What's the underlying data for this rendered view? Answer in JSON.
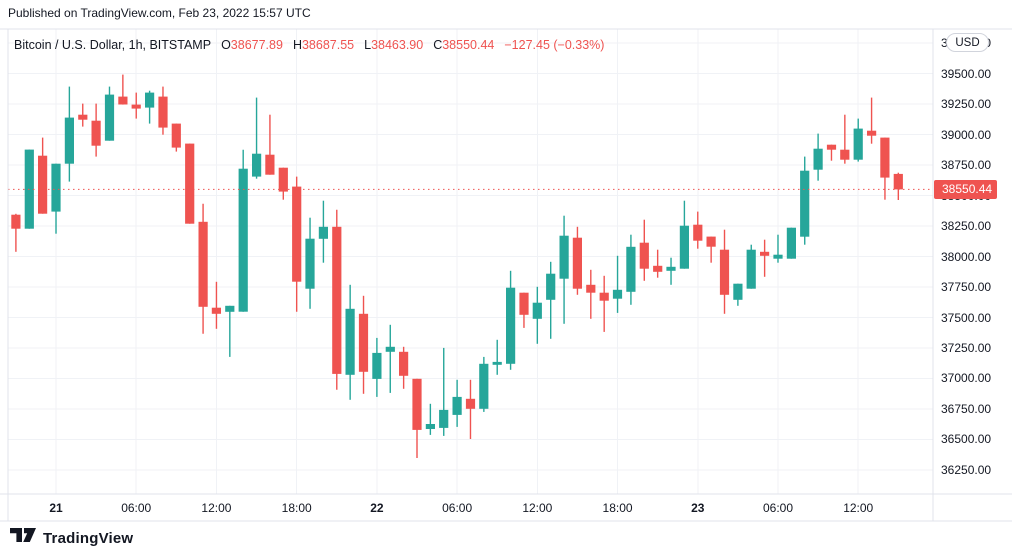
{
  "header": {
    "published": "Published on TradingView.com, Feb 23, 2022 15:57 UTC"
  },
  "legend": {
    "symbol": "Bitcoin / U.S. Dollar, 1h, BITSTAMP",
    "ohlc": [
      {
        "label": "O",
        "value": "38677.89"
      },
      {
        "label": "H",
        "value": "38687.55"
      },
      {
        "label": "L",
        "value": "38463.90"
      },
      {
        "label": "C",
        "value": "38550.44"
      }
    ],
    "change": "−127.45 (−0.33%)"
  },
  "axes": {
    "currency_badge": "USD",
    "last_price_label": "38550.44"
  },
  "footer": {
    "brand": "TradingView"
  },
  "chart_data": {
    "type": "candlestick",
    "title": "Bitcoin / U.S. Dollar, 1h, BITSTAMP",
    "columns": [
      "time",
      "open",
      "high",
      "low",
      "close"
    ],
    "colors": {
      "up": "#26a69a",
      "down": "#ef5350",
      "grid": "#f0f2f6",
      "frame": "#e0e3eb",
      "text": "#131722"
    },
    "last_price": 38550.44,
    "price_line_value": 38550.44,
    "y_axis_ticks": [
      39750,
      39500,
      39250,
      39000,
      38750,
      38500,
      38250,
      38000,
      37750,
      37500,
      37250,
      37000,
      36750,
      36500,
      36250
    ],
    "y_view_range": [
      36070,
      39870
    ],
    "x_axis_ticks": [
      {
        "index": 3,
        "label": "21",
        "bold": true
      },
      {
        "index": 9,
        "label": "06:00",
        "bold": false
      },
      {
        "index": 15,
        "label": "12:00",
        "bold": false
      },
      {
        "index": 21,
        "label": "18:00",
        "bold": false
      },
      {
        "index": 27,
        "label": "22",
        "bold": true
      },
      {
        "index": 33,
        "label": "06:00",
        "bold": false
      },
      {
        "index": 39,
        "label": "12:00",
        "bold": false
      },
      {
        "index": 45,
        "label": "18:00",
        "bold": false
      },
      {
        "index": 51,
        "label": "23",
        "bold": true
      },
      {
        "index": 57,
        "label": "06:00",
        "bold": false
      },
      {
        "index": 63,
        "label": "12:00",
        "bold": false
      }
    ],
    "candles": [
      [
        "Feb 20 21:00",
        38343,
        38350,
        38039,
        38228
      ],
      [
        "Feb 20 22:00",
        38228,
        38877,
        38228,
        38877
      ],
      [
        "Feb 20 23:00",
        38827,
        38975,
        38351,
        38351
      ],
      [
        "Feb 21 00:00",
        38368,
        38761,
        38187,
        38761
      ],
      [
        "Feb 21 01:00",
        38761,
        39393,
        38614,
        39139
      ],
      [
        "Feb 21 02:00",
        39163,
        39254,
        39065,
        39122
      ],
      [
        "Feb 21 03:00",
        39114,
        39254,
        38819,
        38909
      ],
      [
        "Feb 21 04:00",
        38950,
        39393,
        38950,
        39328
      ],
      [
        "Feb 21 05:00",
        39311,
        39492,
        39246,
        39246
      ],
      [
        "Feb 21 06:00",
        39246,
        39344,
        39131,
        39213
      ],
      [
        "Feb 21 07:00",
        39221,
        39360,
        39090,
        39344
      ],
      [
        "Feb 21 08:00",
        39311,
        39393,
        38999,
        39057
      ],
      [
        "Feb 21 09:00",
        39090,
        39090,
        38860,
        38893
      ],
      [
        "Feb 21 10:00",
        38926,
        38926,
        38269,
        38269
      ],
      [
        "Feb 21 11:00",
        38285,
        38433,
        37366,
        37588
      ],
      [
        "Feb 21 12:00",
        37580,
        37793,
        37407,
        37530
      ],
      [
        "Feb 21 13:00",
        37547,
        37596,
        37177,
        37596
      ],
      [
        "Feb 21 14:00",
        37547,
        38876,
        37547,
        38720
      ],
      [
        "Feb 21 15:00",
        38655,
        39303,
        38638,
        38843
      ],
      [
        "Feb 21 16:00",
        38835,
        39163,
        38671,
        38671
      ],
      [
        "Feb 21 17:00",
        38728,
        38728,
        38466,
        38532
      ],
      [
        "Feb 21 18:00",
        38573,
        38655,
        37547,
        37793
      ],
      [
        "Feb 21 19:00",
        37736,
        38318,
        37571,
        38146
      ],
      [
        "Feb 21 20:00",
        38146,
        38458,
        37949,
        38244
      ],
      [
        "Feb 21 21:00",
        38244,
        38384,
        36907,
        37038
      ],
      [
        "Feb 21 22:00",
        37030,
        37768,
        36825,
        37571
      ],
      [
        "Feb 21 23:00",
        37530,
        37678,
        36874,
        37054
      ],
      [
        "Feb 22 00:00",
        36997,
        37333,
        36849,
        37210
      ],
      [
        "Feb 22 01:00",
        37219,
        37440,
        36882,
        37260
      ],
      [
        "Feb 22 02:00",
        37219,
        37260,
        36915,
        37022
      ],
      [
        "Feb 22 03:00",
        36997,
        36997,
        36348,
        36578
      ],
      [
        "Feb 22 04:00",
        36586,
        36792,
        36537,
        36627
      ],
      [
        "Feb 22 05:00",
        36594,
        37251,
        36529,
        36742
      ],
      [
        "Feb 22 06:00",
        36701,
        36989,
        36603,
        36849
      ],
      [
        "Feb 22 07:00",
        36833,
        36989,
        36504,
        36751
      ],
      [
        "Feb 22 08:00",
        36751,
        37177,
        36726,
        37120
      ],
      [
        "Feb 22 09:00",
        37112,
        37317,
        37030,
        37136
      ],
      [
        "Feb 22 10:00",
        37120,
        37883,
        37071,
        37744
      ],
      [
        "Feb 22 11:00",
        37703,
        37703,
        37415,
        37522
      ],
      [
        "Feb 22 12:00",
        37489,
        37752,
        37284,
        37621
      ],
      [
        "Feb 22 13:00",
        37645,
        37957,
        37325,
        37859
      ],
      [
        "Feb 22 14:00",
        37818,
        38335,
        37448,
        38171
      ],
      [
        "Feb 22 15:00",
        38154,
        38244,
        37686,
        37736
      ],
      [
        "Feb 22 16:00",
        37768,
        37891,
        37489,
        37703
      ],
      [
        "Feb 22 17:00",
        37703,
        37842,
        37382,
        37637
      ],
      [
        "Feb 22 18:00",
        37654,
        38006,
        37538,
        37727
      ],
      [
        "Feb 22 19:00",
        37711,
        38179,
        37604,
        38080
      ],
      [
        "Feb 22 20:00",
        38113,
        38302,
        37801,
        37900
      ],
      [
        "Feb 22 21:00",
        37924,
        38056,
        37826,
        37875
      ],
      [
        "Feb 22 22:00",
        37883,
        37990,
        37768,
        37916
      ],
      [
        "Feb 22 23:00",
        37900,
        38458,
        37900,
        38253
      ],
      [
        "Feb 23 00:00",
        38261,
        38368,
        38064,
        38130
      ],
      [
        "Feb 23 01:00",
        38163,
        38163,
        37949,
        38080
      ],
      [
        "Feb 23 02:00",
        38056,
        38220,
        37530,
        37686
      ],
      [
        "Feb 23 03:00",
        37645,
        37777,
        37596,
        37777
      ],
      [
        "Feb 23 04:00",
        37736,
        38097,
        37736,
        38056
      ],
      [
        "Feb 23 05:00",
        38039,
        38138,
        37834,
        38006
      ],
      [
        "Feb 23 06:00",
        37982,
        38179,
        37949,
        38015
      ],
      [
        "Feb 23 07:00",
        37982,
        38236,
        37982,
        38236
      ],
      [
        "Feb 23 08:00",
        38163,
        38819,
        38097,
        38704
      ],
      [
        "Feb 23 09:00",
        38712,
        39008,
        38622,
        38884
      ],
      [
        "Feb 23 10:00",
        38917,
        38917,
        38786,
        38876
      ],
      [
        "Feb 23 11:00",
        38876,
        39163,
        38761,
        38794
      ],
      [
        "Feb 23 12:00",
        38794,
        39131,
        38778,
        39049
      ],
      [
        "Feb 23 13:00",
        39032,
        39303,
        38925,
        38991
      ],
      [
        "Feb 23 14:00",
        38975,
        38975,
        38466,
        38647
      ],
      [
        "Feb 23 15:00",
        38677.89,
        38687.55,
        38463.9,
        38550.44
      ]
    ]
  }
}
